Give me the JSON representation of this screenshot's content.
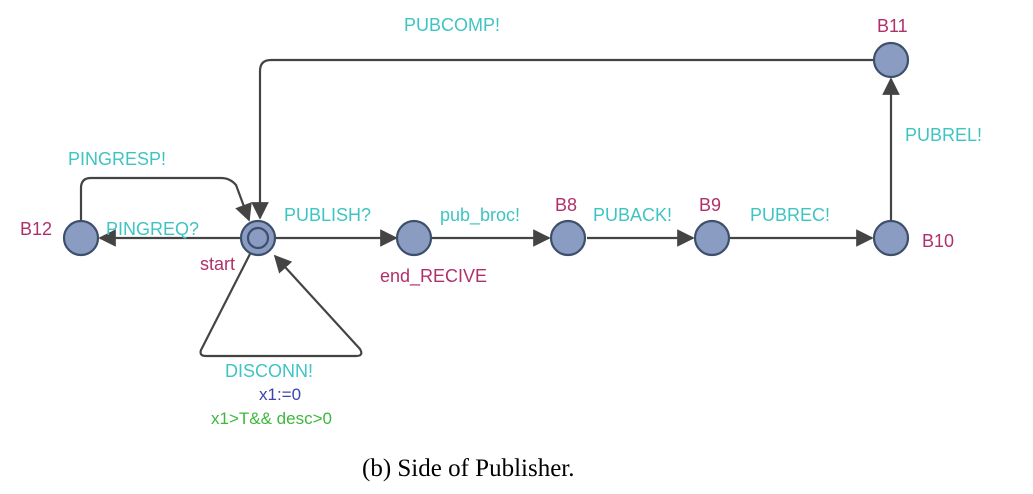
{
  "colors": {
    "state_fill": "#8a9cc1",
    "state_stroke": "#3d4f6a",
    "edge": "#444444",
    "sync_label": "#3fc4c4",
    "location_label": "#b0306a",
    "assignment_label": "#3b44b0",
    "guard_label": "#3db83d"
  },
  "states": {
    "start": "start",
    "end_recive": "end_RECIVE",
    "b8": "B8",
    "b9": "B9",
    "b10": "B10",
    "b11": "B11",
    "b12": "B12"
  },
  "transitions": {
    "publish": "PUBLISH?",
    "pub_broc": "pub_broc!",
    "puback": "PUBACK!",
    "pubrec": "PUBREC!",
    "pubrel": "PUBREL!",
    "pubcomp": "PUBCOMP!",
    "pingreq": "PINGREQ?",
    "pingresp": "PINGRESP!",
    "disconn": "DISCONN!",
    "disconn_update": "x1:=0",
    "disconn_guard": "x1>T&& desc>0"
  },
  "caption": "(b) Side of Publisher."
}
